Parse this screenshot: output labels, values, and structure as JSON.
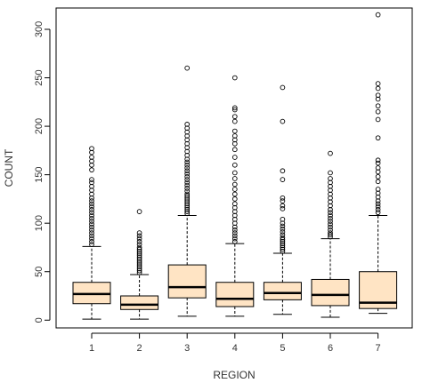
{
  "chart_data": {
    "type": "boxplot",
    "xlabel": "REGION",
    "ylabel": "COUNT",
    "ylim": [
      -8,
      322
    ],
    "yticks": [
      0,
      50,
      100,
      150,
      200,
      250,
      300
    ],
    "categories": [
      "1",
      "2",
      "3",
      "4",
      "5",
      "6",
      "7"
    ],
    "box_fill": "#FFE4C4",
    "box_stroke": "#000000",
    "boxes": [
      {
        "category": "1",
        "whisker_low": 1,
        "q1": 17,
        "median": 27,
        "q3": 39,
        "whisker_high": 76,
        "outliers": [
          78,
          81,
          84,
          87,
          90,
          93,
          96,
          99,
          102,
          105,
          108,
          111,
          114,
          117,
          120,
          123,
          126,
          130,
          134,
          138,
          142,
          145,
          155,
          160,
          164,
          168,
          173,
          177
        ]
      },
      {
        "category": "2",
        "whisker_low": 1,
        "q1": 11,
        "median": 16,
        "q3": 25,
        "whisker_high": 47,
        "outliers": [
          49,
          51,
          53,
          55,
          57,
          59,
          61,
          63,
          65,
          67,
          69,
          71,
          73,
          75,
          78,
          81,
          84,
          87,
          90,
          112
        ]
      },
      {
        "category": "3",
        "whisker_low": 4,
        "q1": 23,
        "median": 34,
        "q3": 57,
        "whisker_high": 108,
        "outliers": [
          110,
          112,
          114,
          116,
          118,
          120,
          122,
          124,
          126,
          128,
          130,
          133,
          136,
          139,
          142,
          145,
          148,
          151,
          154,
          157,
          160,
          163,
          166,
          170,
          174,
          178,
          182,
          186,
          190,
          194,
          198,
          202,
          260
        ]
      },
      {
        "category": "4",
        "whisker_low": 4,
        "q1": 14,
        "median": 22,
        "q3": 39,
        "whisker_high": 79,
        "outliers": [
          81,
          84,
          87,
          90,
          93,
          96,
          100,
          104,
          108,
          112,
          116,
          120,
          125,
          130,
          135,
          140,
          146,
          152,
          160,
          168,
          176,
          182,
          186,
          190,
          195,
          205,
          210,
          217,
          219,
          250
        ]
      },
      {
        "category": "5",
        "whisker_low": 6,
        "q1": 21,
        "median": 28,
        "q3": 39,
        "whisker_high": 69,
        "outliers": [
          71,
          73,
          75,
          77,
          79,
          81,
          83,
          85,
          88,
          91,
          94,
          97,
          100,
          104,
          115,
          118,
          123,
          126,
          145,
          154,
          205,
          240
        ]
      },
      {
        "category": "6",
        "whisker_low": 3,
        "q1": 15,
        "median": 26,
        "q3": 42,
        "whisker_high": 84,
        "outliers": [
          86,
          88,
          90,
          93,
          96,
          99,
          102,
          105,
          108,
          111,
          114,
          118,
          122,
          126,
          130,
          134,
          138,
          142,
          146,
          152,
          172
        ]
      },
      {
        "category": "7",
        "whisker_low": 7,
        "q1": 12,
        "median": 18,
        "q3": 50,
        "whisker_high": 108,
        "outliers": [
          111,
          114,
          117,
          120,
          123,
          127,
          131,
          135,
          143,
          148,
          153,
          157,
          162,
          165,
          188,
          207,
          215,
          221,
          228,
          232,
          239,
          244,
          315
        ]
      }
    ]
  }
}
